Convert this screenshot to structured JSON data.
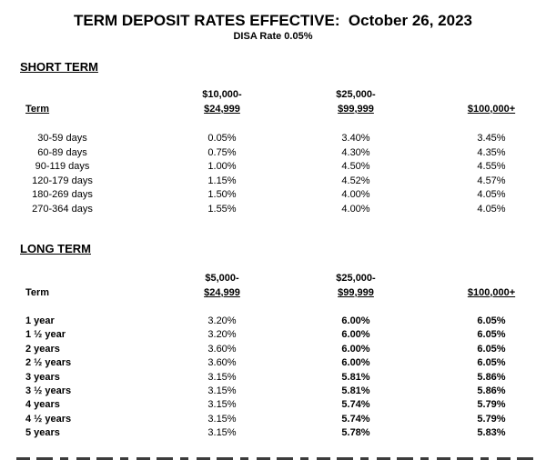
{
  "page": {
    "title": "TERM DEPOSIT RATES EFFECTIVE:  October 26, 2023",
    "subtitle": "DISA Rate 0.05%"
  },
  "short_term": {
    "heading": "SHORT TERM",
    "columns": {
      "term": "Term",
      "tier1_line1": "$10,000-",
      "tier1_line2": "$24,999",
      "tier2_line1": "$25,000-",
      "tier2_line2": "$99,999",
      "tier3": "$100,000+"
    },
    "rows": [
      {
        "term": "30-59 days",
        "tier1": "0.05%",
        "tier2": "3.40%",
        "tier3": "3.45%"
      },
      {
        "term": "60-89 days",
        "tier1": "0.75%",
        "tier2": "4.30%",
        "tier3": "4.35%"
      },
      {
        "term": "90-119 days",
        "tier1": "1.00%",
        "tier2": "4.50%",
        "tier3": "4.55%"
      },
      {
        "term": "120-179 days",
        "tier1": "1.15%",
        "tier2": "4.52%",
        "tier3": "4.57%"
      },
      {
        "term": "180-269 days",
        "tier1": "1.50%",
        "tier2": "4.00%",
        "tier3": "4.05%"
      },
      {
        "term": "270-364 days",
        "tier1": "1.55%",
        "tier2": "4.00%",
        "tier3": "4.05%"
      }
    ]
  },
  "long_term": {
    "heading": "LONG TERM",
    "columns": {
      "term": "Term",
      "tier1_line1": "$5,000-",
      "tier1_line2": "$24,999",
      "tier2_line1": "$25,000-",
      "tier2_line2": "$99,999",
      "tier3": "$100,000+"
    },
    "rows": [
      {
        "term": "1 year",
        "tier1": "3.20%",
        "tier2": "6.00%",
        "tier3": "6.05%"
      },
      {
        "term": "1 ½ year",
        "tier1": "3.20%",
        "tier2": "6.00%",
        "tier3": "6.05%"
      },
      {
        "term": "2 years",
        "tier1": "3.60%",
        "tier2": "6.00%",
        "tier3": "6.05%"
      },
      {
        "term": "2 ½ years",
        "tier1": "3.60%",
        "tier2": "6.00%",
        "tier3": "6.05%"
      },
      {
        "term": "3 years",
        "tier1": "3.15%",
        "tier2": "5.81%",
        "tier3": "5.86%"
      },
      {
        "term": "3 ½ years",
        "tier1": "3.15%",
        "tier2": "5.81%",
        "tier3": "5.86%"
      },
      {
        "term": "4 years",
        "tier1": "3.15%",
        "tier2": "5.74%",
        "tier3": "5.79%"
      },
      {
        "term": "4 ½ years",
        "tier1": "3.15%",
        "tier2": "5.74%",
        "tier3": "5.79%"
      },
      {
        "term": "5 years",
        "tier1": "3.15%",
        "tier2": "5.78%",
        "tier3": "5.83%"
      }
    ]
  }
}
